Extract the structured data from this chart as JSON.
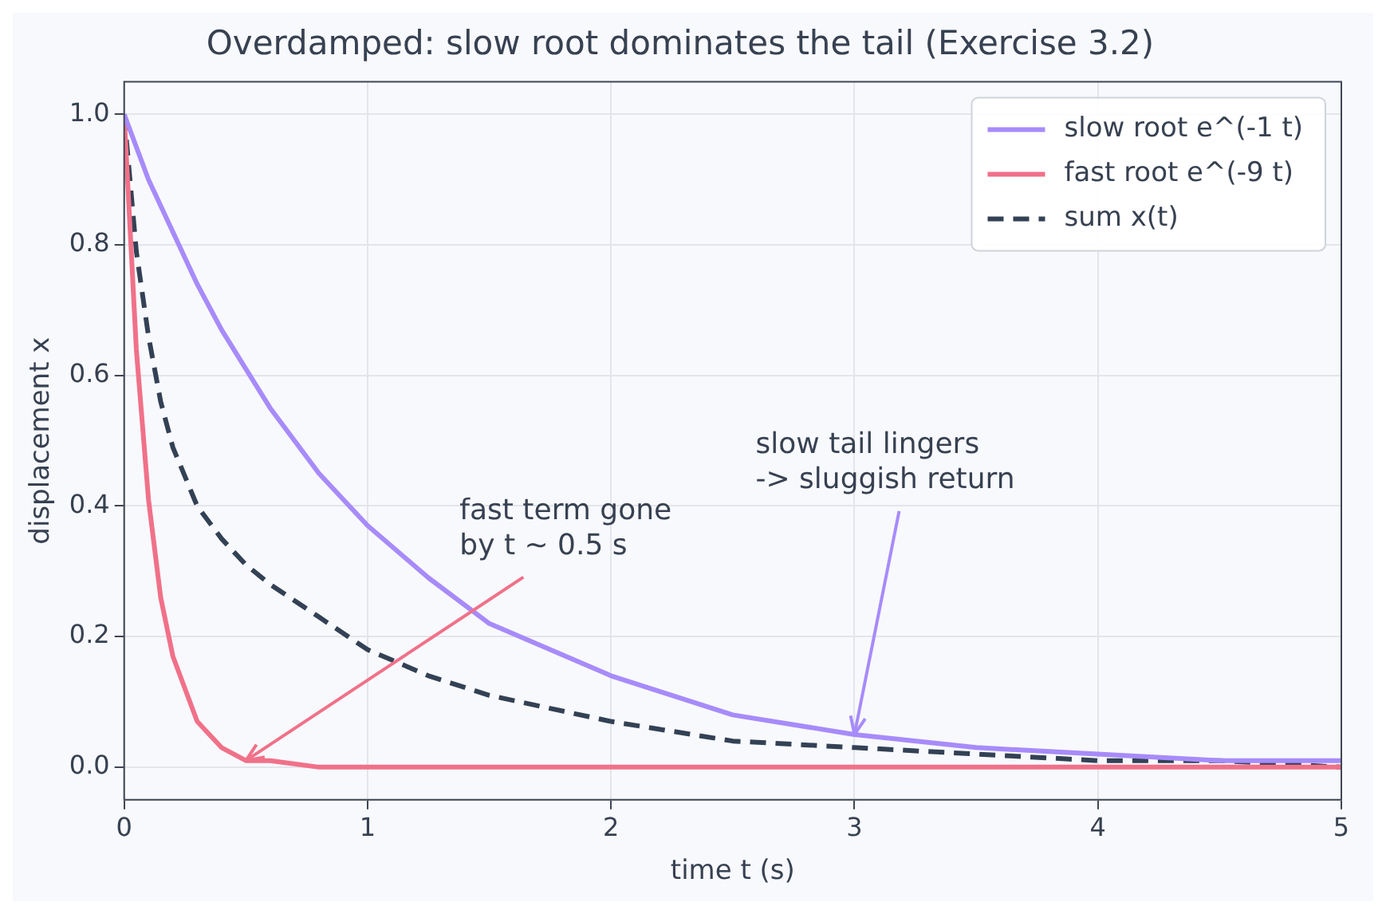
{
  "chart_data": {
    "type": "line",
    "title": "Overdamped: slow root dominates the tail (Exercise 3.2)",
    "xlabel": "time t (s)",
    "ylabel": "displacement x",
    "x": [
      0,
      0.05,
      0.1,
      0.15,
      0.2,
      0.3,
      0.4,
      0.5,
      0.6,
      0.8,
      1,
      1.25,
      1.5,
      2,
      2.5,
      3,
      3.5,
      4,
      4.5,
      5
    ],
    "series": [
      {
        "name": "slow root e^(-1 t)",
        "color": "#a78bfa",
        "values": [
          1,
          0.95,
          0.9,
          0.86,
          0.82,
          0.74,
          0.67,
          0.61,
          0.55,
          0.45,
          0.37,
          0.29,
          0.22,
          0.14,
          0.08,
          0.05,
          0.03,
          0.02,
          0.01,
          0.01
        ]
      },
      {
        "name": "fast root e^(-9 t)",
        "color": "#f07189",
        "values": [
          1,
          0.64,
          0.41,
          0.26,
          0.17,
          0.07,
          0.03,
          0.01,
          0.01,
          0,
          0,
          0,
          0,
          0,
          0,
          0,
          0,
          0,
          0,
          0
        ]
      },
      {
        "name": "sum x(t)",
        "color": "#334155",
        "line_style": "dashed",
        "values": [
          1,
          0.79,
          0.66,
          0.56,
          0.49,
          0.4,
          0.35,
          0.31,
          0.28,
          0.23,
          0.18,
          0.14,
          0.11,
          0.07,
          0.04,
          0.03,
          0.02,
          0.01,
          0.01,
          0
        ]
      }
    ],
    "xlim": [
      0,
      5
    ],
    "xticks": [
      0,
      1,
      2,
      3,
      4,
      5
    ],
    "ylim": [
      -0.05,
      1.05
    ],
    "yticks": [
      {
        "value": 0,
        "label": "0.0"
      },
      0.2,
      0.4,
      0.6,
      0.8,
      {
        "value": 1,
        "label": "1.0"
      }
    ],
    "grid": true,
    "legend": "top right",
    "marker": "none",
    "line_style": "solid",
    "annotations": [
      {
        "text": "fast term gone\nby t ~ 0.5 s",
        "x": 0.5,
        "y": 0.01
      },
      {
        "text": "slow tail lingers\n-> sluggish return",
        "x": 3,
        "y": 0.05
      }
    ]
  }
}
